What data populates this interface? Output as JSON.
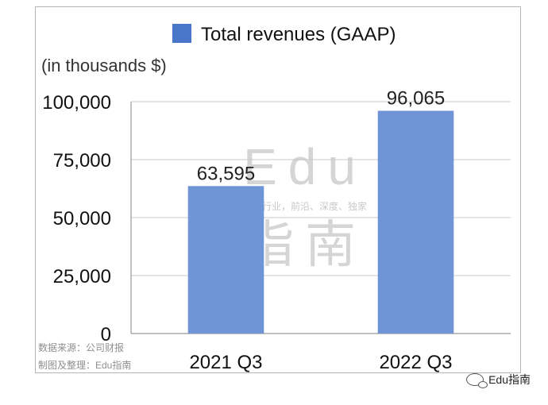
{
  "chart_data": {
    "type": "bar",
    "categories": [
      "2021 Q3",
      "2022 Q3"
    ],
    "series": [
      {
        "name": "Total revenues (GAAP)",
        "values": [
          63595,
          96065
        ]
      }
    ],
    "data_labels": [
      "63,595",
      "96,065"
    ],
    "unit_label": "(in thousands $)",
    "ylim": [
      0,
      100000
    ],
    "yticks": [
      0,
      25000,
      50000,
      75000,
      100000
    ],
    "ytick_labels": [
      "0",
      "25,000",
      "50,000",
      "75,000",
      "100,000"
    ],
    "grid": true,
    "legend_position": "top",
    "bar_color": "#6f95d6",
    "legend_color": "#4a76c9"
  },
  "watermark": {
    "latin": "Edu",
    "tagline": "教育行业，前沿、深度、独家",
    "chinese": "指南"
  },
  "source": {
    "line1": "数据来源：公司财报",
    "line2": "制图及整理：Edu指南"
  },
  "brand": {
    "icon": "wechat-icon",
    "label": "Edu指南"
  }
}
